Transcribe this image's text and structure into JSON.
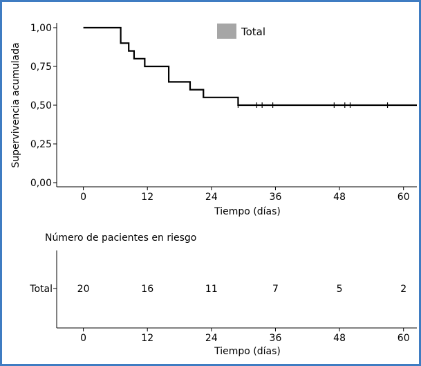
{
  "chart_data": [
    {
      "type": "line",
      "subtype": "kaplan-meier",
      "title": "",
      "xlabel": "Tiempo (días)",
      "ylabel": "Supervivencia acumulada",
      "xlim": [
        -5,
        62.5
      ],
      "ylim": [
        0,
        1
      ],
      "xticks": [
        0,
        12,
        24,
        36,
        48,
        60
      ],
      "xtick_labels": [
        "0",
        "12",
        "24",
        "36",
        "48",
        "60"
      ],
      "yticks": [
        0,
        0.25,
        0.5,
        0.75,
        1
      ],
      "ytick_labels": [
        "0,00",
        "0,25",
        "0,50",
        "0,75",
        "1,00"
      ],
      "grid": false,
      "legend": {
        "position": "top",
        "entries": [
          {
            "label": "Total",
            "color": "#a6a6a6"
          }
        ]
      },
      "series": [
        {
          "name": "Total",
          "color": "#000000",
          "steps": [
            [
              0,
              1.0
            ],
            [
              7,
              0.9
            ],
            [
              8.5,
              0.85
            ],
            [
              9.5,
              0.8
            ],
            [
              11.5,
              0.75
            ],
            [
              16,
              0.65
            ],
            [
              20,
              0.6
            ],
            [
              22.5,
              0.55
            ],
            [
              29,
              0.5
            ],
            [
              62.5,
              0.5
            ]
          ],
          "censored": [
            {
              "x": 29,
              "y": 0.5
            },
            {
              "x": 32.5,
              "y": 0.5
            },
            {
              "x": 33.5,
              "y": 0.5
            },
            {
              "x": 35.5,
              "y": 0.5
            },
            {
              "x": 47,
              "y": 0.5
            },
            {
              "x": 49,
              "y": 0.5
            },
            {
              "x": 50,
              "y": 0.5
            },
            {
              "x": 57,
              "y": 0.5
            }
          ]
        }
      ]
    },
    {
      "type": "table",
      "title": "Número de pacientes en riesgo",
      "xlabel": "Tiempo (días)",
      "xlim": [
        -5,
        62.5
      ],
      "xticks": [
        0,
        12,
        24,
        36,
        48,
        60
      ],
      "xtick_labels": [
        "0",
        "12",
        "24",
        "36",
        "48",
        "60"
      ],
      "row_label": "Total",
      "at_times": [
        0,
        12,
        24,
        36,
        48,
        60
      ],
      "values": [
        "20",
        "16",
        "11",
        "7",
        "5",
        "2"
      ]
    }
  ]
}
